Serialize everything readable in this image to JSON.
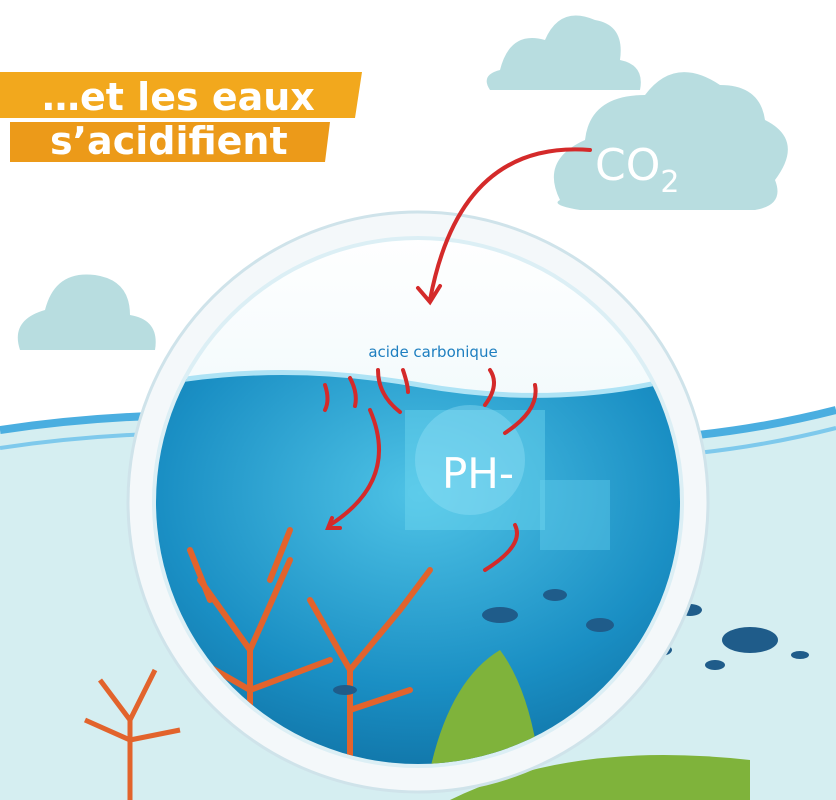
{
  "banner": {
    "lines": [
      "…et les eaux",
      "s’acidifient"
    ]
  },
  "labels": {
    "co2": [
      "CO",
      "2"
    ],
    "acid": "acide carbonique",
    "ph": "PH-"
  }
}
